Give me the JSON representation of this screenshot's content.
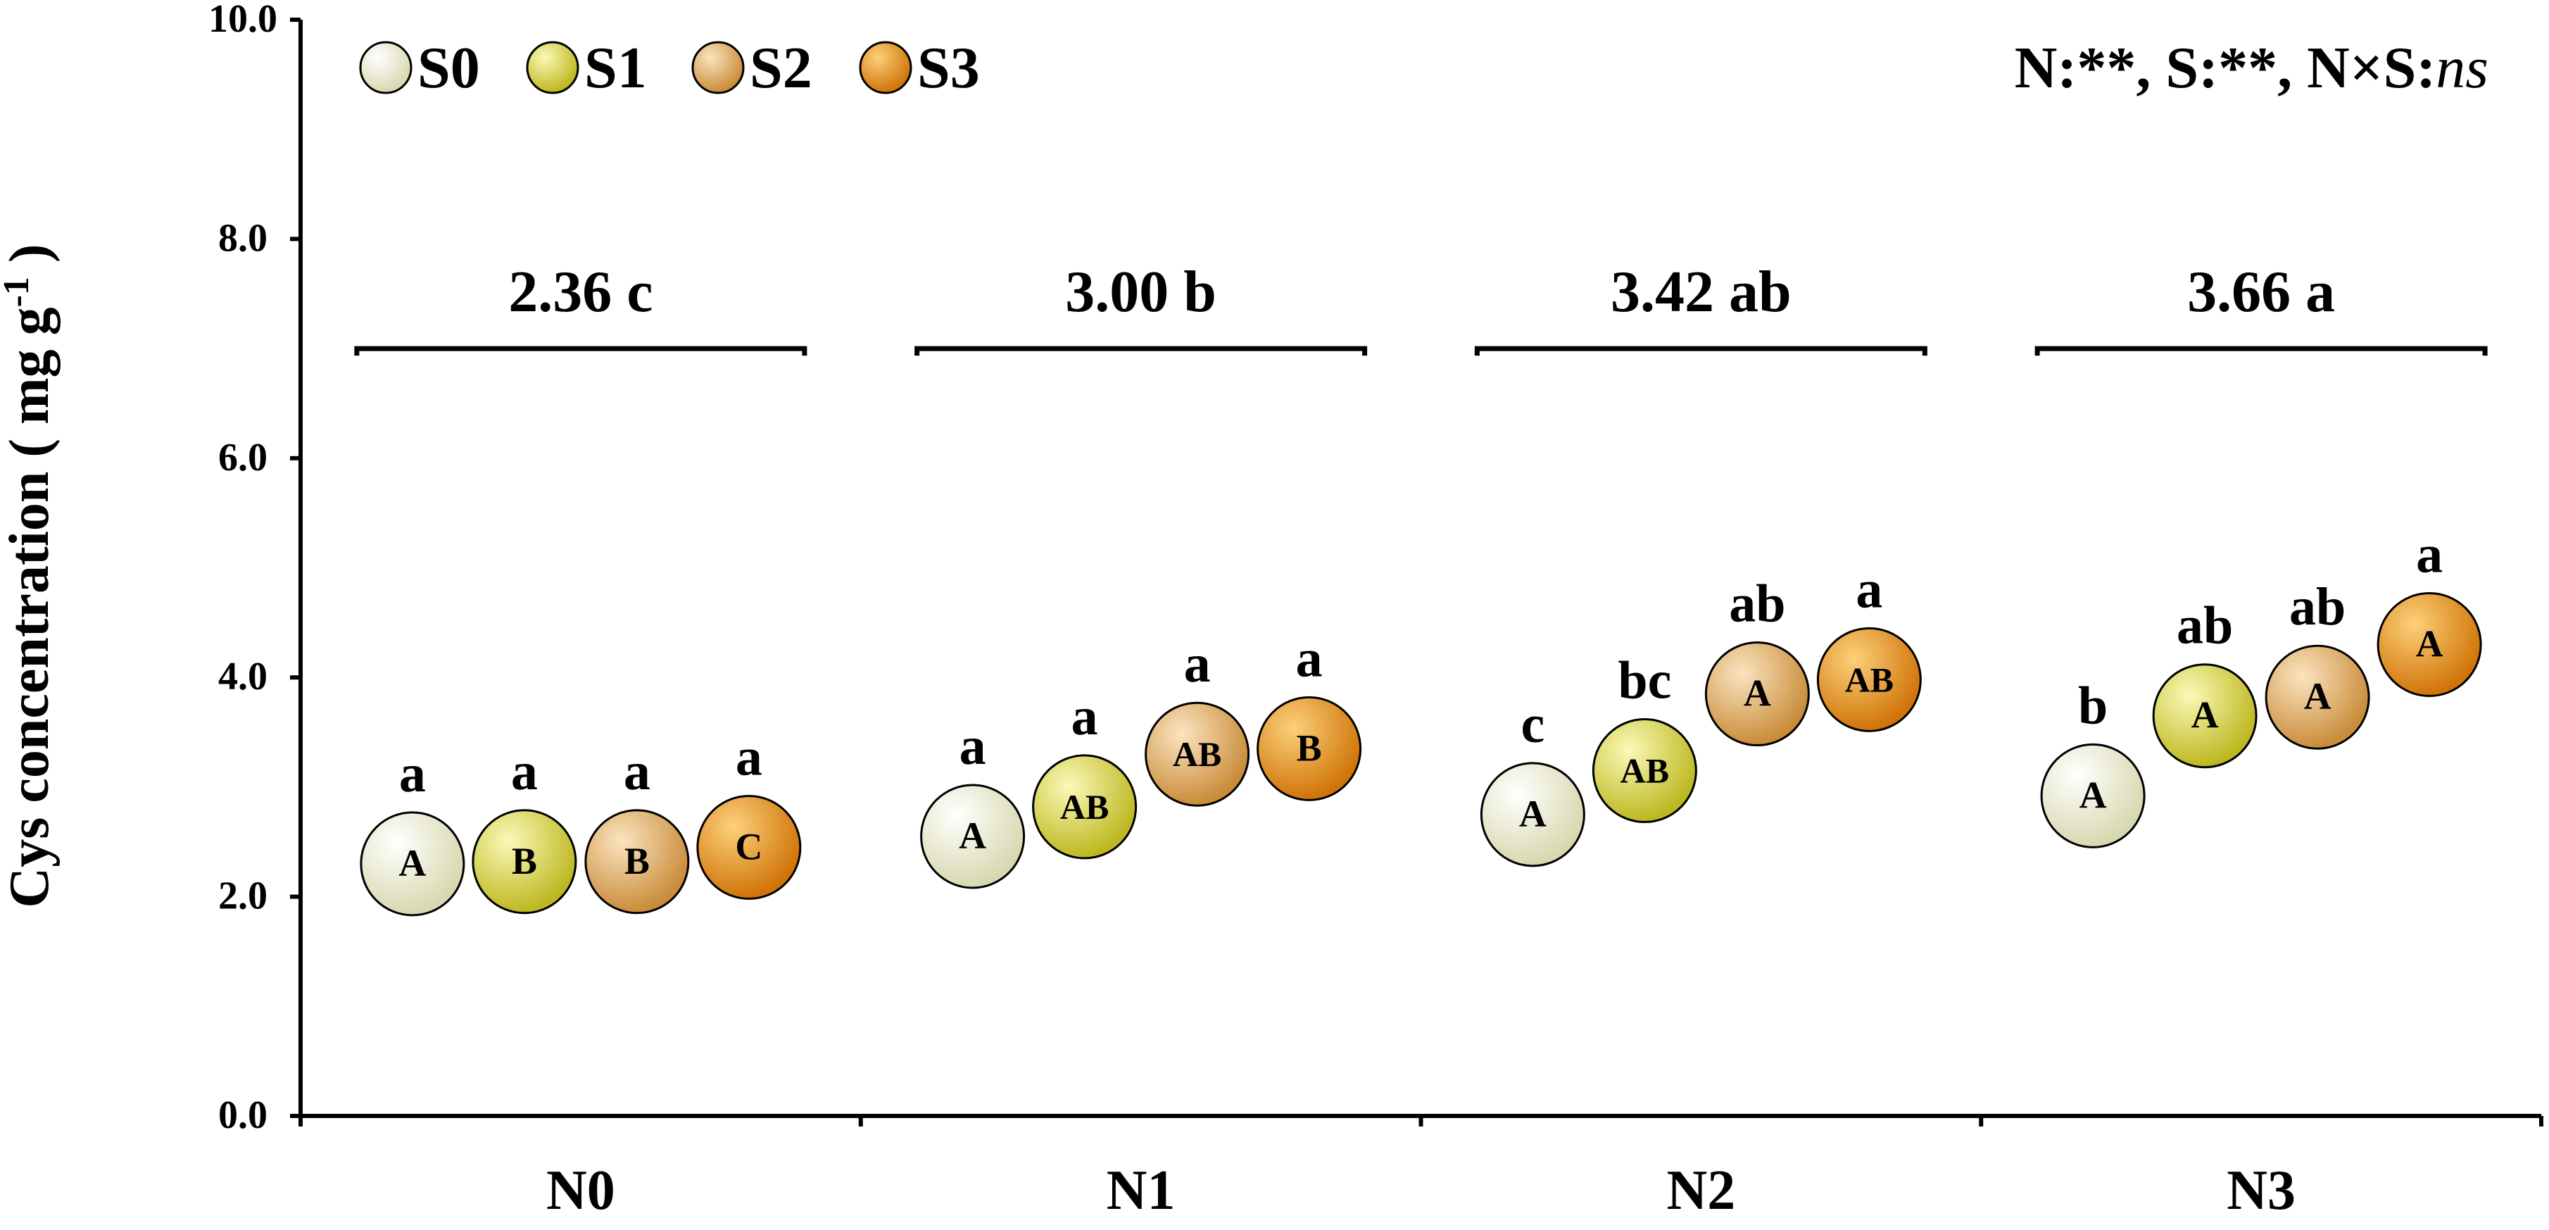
{
  "chart_data": {
    "type": "scatter",
    "ylabel": "Cys concentration ( mg g",
    "ylabel_sup": "-1",
    "ylabel_tail": " )",
    "ylim": [
      0,
      10
    ],
    "yticks": [
      "0.0",
      "2.0",
      "4.0",
      "6.0",
      "8.0",
      "10.0"
    ],
    "ytick_values": [
      0,
      2,
      4,
      6,
      8,
      10
    ],
    "categories": [
      "N0",
      "N1",
      "N2",
      "N3"
    ],
    "grid": false,
    "legend_position": "top-left",
    "significance_text": "N:**, S:**, N×S:",
    "significance_italic": "ns",
    "group_means": [
      {
        "category": "N0",
        "label": "2.36 c"
      },
      {
        "category": "N1",
        "label": "3.00 b"
      },
      {
        "category": "N2",
        "label": "3.42 ab"
      },
      {
        "category": "N3",
        "label": "3.66 a"
      }
    ],
    "series": [
      {
        "name": "S0",
        "color": "#e8e8c4",
        "values": [
          2.3,
          2.55,
          2.75,
          2.92
        ],
        "upper_letters": [
          "a",
          "a",
          "c",
          "b"
        ],
        "inner_letters": [
          "A",
          "A",
          "A",
          "A"
        ]
      },
      {
        "name": "S1",
        "color": "#d9d63a",
        "values": [
          2.32,
          2.82,
          3.15,
          3.65
        ],
        "upper_letters": [
          "a",
          "a",
          "bc",
          "ab"
        ],
        "inner_letters": [
          "B",
          "AB",
          "AB",
          "A"
        ]
      },
      {
        "name": "S2",
        "color": "#dca55a",
        "values": [
          2.32,
          3.3,
          3.85,
          3.82
        ],
        "upper_letters": [
          "a",
          "a",
          "ab",
          "ab"
        ],
        "inner_letters": [
          "B",
          "AB",
          "A",
          "A"
        ]
      },
      {
        "name": "S3",
        "color": "#e8890e",
        "values": [
          2.45,
          3.35,
          3.98,
          4.3
        ],
        "upper_letters": [
          "a",
          "a",
          "a",
          "a"
        ],
        "inner_letters": [
          "C",
          "B",
          "AB",
          "A"
        ]
      }
    ]
  }
}
